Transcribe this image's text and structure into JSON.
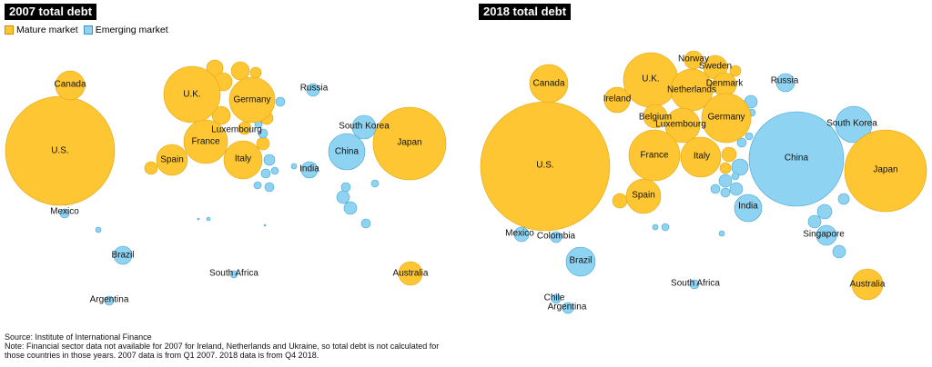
{
  "legend": {
    "mature_label": "Mature market",
    "emerging_label": "Emerging market"
  },
  "colors": {
    "mature": "#FDC632",
    "emerging": "#8FD3F2",
    "mature_stroke": "#E0A512",
    "emerging_stroke": "#46A3D3"
  },
  "footer": {
    "source": "Source: Institute of International Finance",
    "note_line1": "Note: Financial sector data not available for 2007 for Ireland, Netherlands and Ukraine, so total debt is not calculated for",
    "note_line2": "those countries in those years. 2007 data is from Q1 2007. 2018 data is from Q4 2018."
  },
  "chart_data": [
    {
      "type": "bubble-map",
      "title": "2007 total debt",
      "countries": [
        {
          "label": "U.S.",
          "market": "mature"
        },
        {
          "label": "Canada",
          "market": "mature"
        },
        {
          "label": "Mexico",
          "market": "emerging"
        },
        {
          "label": "Brazil",
          "market": "emerging"
        },
        {
          "label": "Argentina",
          "market": "emerging"
        },
        {
          "label": "U.K.",
          "market": "mature"
        },
        {
          "label": "Germany",
          "market": "mature"
        },
        {
          "label": "France",
          "market": "mature"
        },
        {
          "label": "Luxembourg",
          "market": "mature"
        },
        {
          "label": "Spain",
          "market": "mature"
        },
        {
          "label": "Italy",
          "market": "mature"
        },
        {
          "label": "Russia",
          "market": "emerging"
        },
        {
          "label": "South Korea",
          "market": "emerging"
        },
        {
          "label": "China",
          "market": "emerging"
        },
        {
          "label": "Japan",
          "market": "mature"
        },
        {
          "label": "India",
          "market": "emerging"
        },
        {
          "label": "South Africa",
          "market": "emerging"
        },
        {
          "label": "Australia",
          "market": "mature"
        }
      ]
    },
    {
      "type": "bubble-map",
      "title": "2018 total debt",
      "countries": [
        {
          "label": "U.S.",
          "market": "mature"
        },
        {
          "label": "Canada",
          "market": "mature"
        },
        {
          "label": "Mexico",
          "market": "emerging"
        },
        {
          "label": "Colombia",
          "market": "emerging"
        },
        {
          "label": "Brazil",
          "market": "emerging"
        },
        {
          "label": "Chile",
          "market": "emerging"
        },
        {
          "label": "Argentina",
          "market": "emerging"
        },
        {
          "label": "Ireland",
          "market": "mature"
        },
        {
          "label": "U.K.",
          "market": "mature"
        },
        {
          "label": "Norway",
          "market": "mature"
        },
        {
          "label": "Sweden",
          "market": "mature"
        },
        {
          "label": "Netherlands",
          "market": "mature"
        },
        {
          "label": "Denmark",
          "market": "mature"
        },
        {
          "label": "Belgium",
          "market": "mature"
        },
        {
          "label": "Luxembourg",
          "market": "mature"
        },
        {
          "label": "Germany",
          "market": "mature"
        },
        {
          "label": "France",
          "market": "mature"
        },
        {
          "label": "Italy",
          "market": "mature"
        },
        {
          "label": "Spain",
          "market": "mature"
        },
        {
          "label": "Russia",
          "market": "emerging"
        },
        {
          "label": "China",
          "market": "emerging"
        },
        {
          "label": "South Korea",
          "market": "emerging"
        },
        {
          "label": "Japan",
          "market": "mature"
        },
        {
          "label": "India",
          "market": "emerging"
        },
        {
          "label": "Singapore",
          "market": "emerging"
        },
        {
          "label": "South Africa",
          "market": "emerging"
        },
        {
          "label": "Australia",
          "market": "mature"
        }
      ]
    }
  ]
}
